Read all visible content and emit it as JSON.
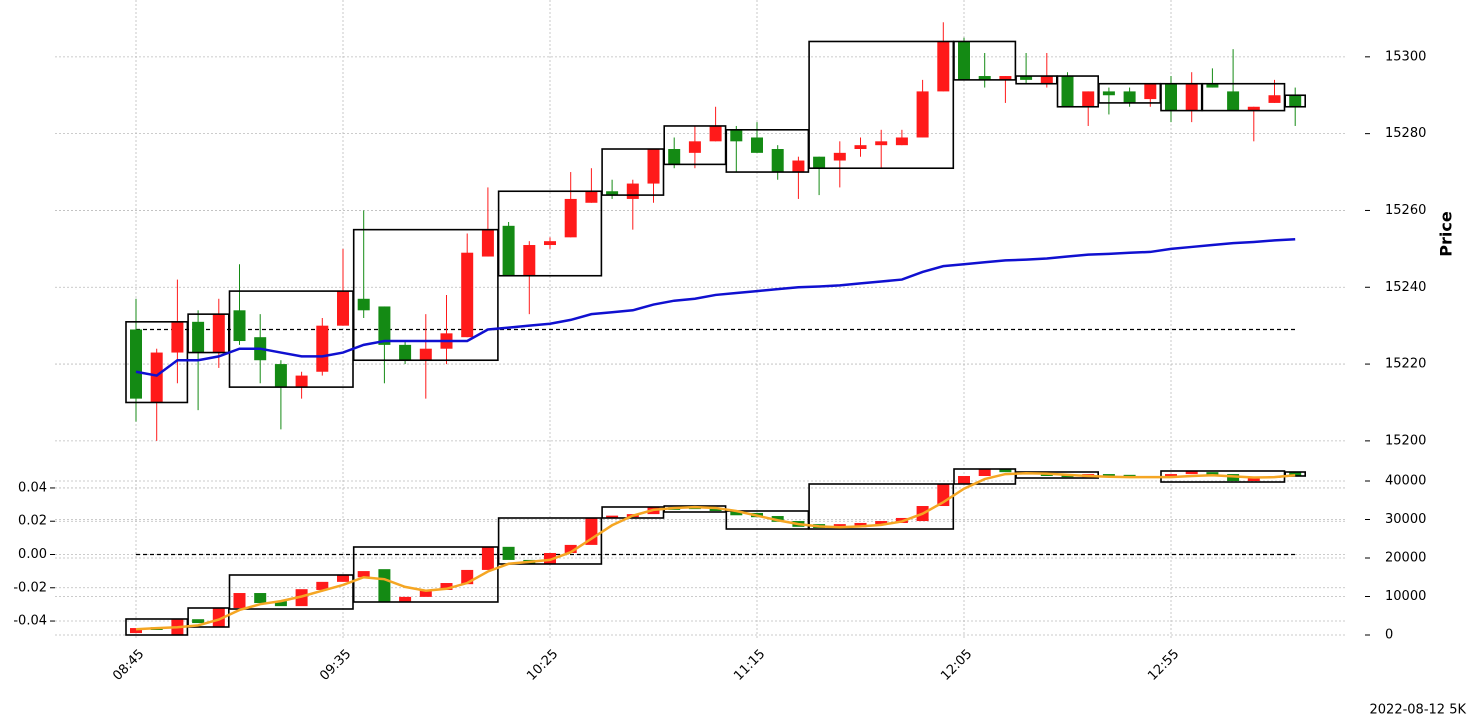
{
  "chart_data": [
    {
      "type": "candlestick",
      "ylabel": "Price",
      "categories": [
        "08:45",
        null,
        null,
        null,
        null,
        null,
        null,
        null,
        null,
        null,
        "09:35",
        null,
        null,
        null,
        null,
        null,
        null,
        null,
        null,
        null,
        "10:25",
        null,
        null,
        null,
        null,
        null,
        null,
        null,
        null,
        null,
        "11:15",
        null,
        null,
        null,
        null,
        null,
        null,
        null,
        null,
        null,
        "12:05",
        null,
        null,
        null,
        null,
        null,
        null,
        null,
        null,
        null,
        "12:55",
        null,
        null,
        null,
        null,
        null,
        null
      ],
      "open": [
        15229,
        15210,
        15223,
        15231,
        15223,
        15234,
        15227,
        15220,
        15214,
        15218,
        15230,
        15237,
        15235,
        15225,
        15221,
        15224,
        15227,
        15248,
        15256,
        15243,
        15251,
        15253,
        15262,
        15265,
        15263,
        15267,
        15276,
        15275,
        15278,
        15281,
        15279,
        15276,
        15270,
        15274,
        15273,
        15276,
        15277,
        15277,
        15279,
        15291,
        15304,
        15295,
        15294,
        15295,
        15293,
        15295,
        15287,
        15291,
        15291,
        15289,
        15293,
        15286,
        15293,
        15291,
        15286,
        15288,
        15290
      ],
      "high": [
        15237,
        15224,
        15242,
        15234,
        15237,
        15246,
        15233,
        15221,
        15218,
        15232,
        15250,
        15260,
        15235,
        15226,
        15233,
        15238,
        15254,
        15266,
        15257,
        15252,
        15253,
        15270,
        15271,
        15268,
        15268,
        15276,
        15279,
        15282,
        15287,
        15282,
        15283,
        15277,
        15274,
        15274,
        15278,
        15279,
        15281,
        15281,
        15294,
        15309,
        15305,
        15301,
        15295,
        15301,
        15301,
        15296,
        15291,
        15292,
        15292,
        15293,
        15295,
        15296,
        15297,
        15302,
        15287,
        15294,
        15292
      ],
      "low": [
        15205,
        15200,
        15215,
        15208,
        15219,
        15225,
        15215,
        15203,
        15211,
        15217,
        15230,
        15232,
        15215,
        15220,
        15211,
        15220,
        15227,
        15248,
        15243,
        15233,
        15250,
        15253,
        15262,
        15263,
        15255,
        15262,
        15271,
        15271,
        15278,
        15270,
        15275,
        15268,
        15263,
        15264,
        15266,
        15274,
        15271,
        15277,
        15279,
        15291,
        15294,
        15292,
        15288,
        15293,
        15292,
        15287,
        15282,
        15285,
        15287,
        15287,
        15283,
        15283,
        15292,
        15286,
        15278,
        15288,
        15282
      ],
      "close": [
        15211,
        15223,
        15231,
        15223,
        15233,
        15226,
        15221,
        15214,
        15217,
        15230,
        15239,
        15234,
        15225,
        15221,
        15224,
        15228,
        15249,
        15255,
        15243,
        15251,
        15252,
        15263,
        15265,
        15264,
        15267,
        15276,
        15272,
        15278,
        15282,
        15278,
        15275,
        15270,
        15273,
        15271,
        15275,
        15277,
        15278,
        15279,
        15291,
        15304,
        15294,
        15294,
        15295,
        15294,
        15295,
        15287,
        15291,
        15290,
        15288,
        15293,
        15286,
        15293,
        15292,
        15286,
        15287,
        15290,
        15287
      ],
      "up_color": "#ff1a1a",
      "down_color": "#148a14",
      "series": [
        {
          "color": "#1010d0",
          "values": [
            15218,
            15217,
            15221,
            15221,
            15222,
            15224,
            15224,
            15223,
            15222,
            15222,
            15223,
            15225,
            15226,
            15226,
            15226,
            15226,
            15226,
            15229,
            15229.5,
            15230,
            15230.5,
            15231.5,
            15233,
            15233.5,
            15234,
            15235.5,
            15236.5,
            15237,
            15238,
            15238.5,
            15239,
            15239.5,
            15240,
            15240.2,
            15240.5,
            15241,
            15241.5,
            15242,
            15244,
            15245.5,
            15246,
            15246.5,
            15247,
            15247.2,
            15247.5,
            15248,
            15248.5,
            15248.7,
            15249,
            15249.2,
            15250,
            15250.5,
            15251,
            15251.5,
            15251.8,
            15252.2,
            15252.5
          ]
        }
      ],
      "reference_line": 15229,
      "boxes": [
        {
          "start": 0,
          "end": 2,
          "high": 15231,
          "low": 15210
        },
        {
          "start": 3,
          "end": 4,
          "high": 15233,
          "low": 15223
        },
        {
          "start": 5,
          "end": 10,
          "high": 15239,
          "low": 15214
        },
        {
          "start": 11,
          "end": 17,
          "high": 15255,
          "low": 15221
        },
        {
          "start": 18,
          "end": 22,
          "high": 15265,
          "low": 15243
        },
        {
          "start": 23,
          "end": 25,
          "high": 15276,
          "low": 15264
        },
        {
          "start": 26,
          "end": 28,
          "high": 15282,
          "low": 15272
        },
        {
          "start": 29,
          "end": 32,
          "high": 15281,
          "low": 15270
        },
        {
          "start": 33,
          "end": 39,
          "high": 15304,
          "low": 15271
        },
        {
          "start": 40,
          "end": 42,
          "high": 15304,
          "low": 15294
        },
        {
          "start": 43,
          "end": 44,
          "high": 15295,
          "low": 15293
        },
        {
          "start": 45,
          "end": 46,
          "high": 15295,
          "low": 15287
        },
        {
          "start": 47,
          "end": 49,
          "high": 15293,
          "low": 15288
        },
        {
          "start": 50,
          "end": 51,
          "high": 15293,
          "low": 15286
        },
        {
          "start": 52,
          "end": 55,
          "high": 15293,
          "low": 15286
        },
        {
          "start": 56,
          "end": 56,
          "high": 15290,
          "low": 15287
        }
      ],
      "ylim": [
        15194.5,
        15314.8
      ],
      "yticks": [
        15200,
        15220,
        15240,
        15260,
        15280,
        15300
      ],
      "grid": true
    },
    {
      "type": "candlestick",
      "open": [
        500,
        2000,
        0,
        4100,
        2100,
        7000,
        10900,
        8800,
        7500,
        11700,
        13800,
        15000,
        17100,
        8600,
        9900,
        11700,
        13200,
        16900,
        22900,
        19500,
        18400,
        21300,
        23400,
        30400,
        30600,
        31400,
        33200,
        33500,
        33000,
        32200,
        31700,
        30900,
        29600,
        28800,
        27800,
        28000,
        28600,
        29100,
        29600,
        33500,
        39200,
        41300,
        43100,
        42300,
        42000,
        41800,
        41000,
        41800,
        41600,
        41300,
        40800,
        41800,
        42300,
        41800,
        40000,
        40800,
        42300
      ],
      "close": [
        1800,
        1300,
        4000,
        3100,
        7000,
        10900,
        8300,
        7500,
        11900,
        13800,
        15600,
        16600,
        8600,
        9900,
        11700,
        13500,
        16900,
        22900,
        19500,
        18400,
        21300,
        23400,
        30400,
        31000,
        31400,
        33200,
        32500,
        32700,
        32200,
        31100,
        30600,
        29400,
        28100,
        27800,
        28800,
        29100,
        29600,
        30400,
        33500,
        39200,
        41300,
        43100,
        42300,
        41800,
        41300,
        41000,
        41800,
        41300,
        41000,
        40800,
        41800,
        42600,
        41600,
        40000,
        40800,
        41300,
        41300
      ],
      "up_color": "#ff1a1a",
      "down_color": "#148a14",
      "series": [
        {
          "color": "#f5a623",
          "axis": "y2",
          "values": [
            1500,
            1800,
            2000,
            2500,
            4000,
            6500,
            8000,
            8800,
            10000,
            11500,
            13000,
            15000,
            14500,
            12500,
            11500,
            12000,
            13500,
            16500,
            18500,
            19000,
            19500,
            21500,
            25000,
            28500,
            31000,
            32500,
            33000,
            33200,
            33000,
            32200,
            31000,
            29800,
            28800,
            28200,
            28000,
            28200,
            28600,
            29500,
            31500,
            34500,
            38000,
            40500,
            41800,
            42000,
            41900,
            41600,
            41300,
            41100,
            41000,
            41000,
            41000,
            41300,
            41500,
            41200,
            40900,
            41000,
            41500
          ]
        }
      ],
      "reference_line": 0,
      "boxes": [
        {
          "start": 0,
          "end": 2,
          "high": 4156,
          "low": 0
        },
        {
          "start": 3,
          "end": 4,
          "high": 7013,
          "low": 2078
        },
        {
          "start": 5,
          "end": 10,
          "high": 15584,
          "low": 6753
        },
        {
          "start": 11,
          "end": 17,
          "high": 22857,
          "low": 8571
        },
        {
          "start": 18,
          "end": 22,
          "high": 30390,
          "low": 18442
        },
        {
          "start": 23,
          "end": 25,
          "high": 33247,
          "low": 30390
        },
        {
          "start": 26,
          "end": 28,
          "high": 33506,
          "low": 31948
        },
        {
          "start": 29,
          "end": 32,
          "high": 32208,
          "low": 27532
        },
        {
          "start": 33,
          "end": 39,
          "high": 39221,
          "low": 27532
        },
        {
          "start": 40,
          "end": 42,
          "high": 43117,
          "low": 39221
        },
        {
          "start": 43,
          "end": 46,
          "high": 42338,
          "low": 40779
        },
        {
          "start": 50,
          "end": 55,
          "high": 42597,
          "low": 39740
        },
        {
          "start": 56,
          "end": 56,
          "high": 42338,
          "low": 41299
        }
      ],
      "ylim": [
        -0.0514,
        0.0556
      ],
      "yticks": [
        -0.04,
        -0.02,
        {
          "value": 0,
          "label": "0.00"
        },
        0.02,
        0.04
      ],
      "y2lim": [
        -1300,
        44935
      ],
      "y2ticks": [
        0,
        10000,
        20000,
        30000,
        40000
      ],
      "grid": true
    }
  ],
  "footer": "2022-08-12 5K"
}
